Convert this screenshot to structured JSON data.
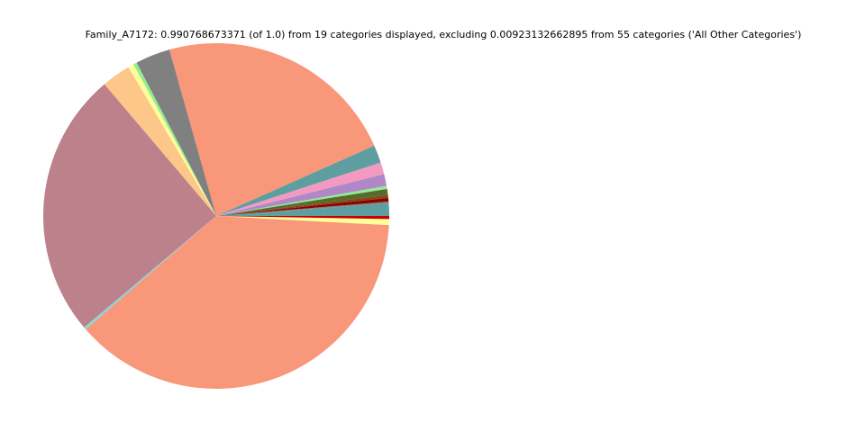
{
  "chart_data": {
    "type": "pie",
    "title": "Family_A7172: 0.990768673371 (of 1.0) from 19 categories displayed, excluding 0.00923132662895 from 55 categories ('All Other Categories')",
    "values": [
      1.17,
      0.17,
      0.33,
      0.28,
      0.56,
      0.28,
      1.11,
      1.11,
      1.67,
      22.69,
      3.25,
      0.33,
      0.53,
      2.72,
      24.97,
      0.22,
      37.78,
      0.56,
      0.28
    ],
    "colors": [
      "#5f9ea0",
      "#808080",
      "#8b0000",
      "#8b4513",
      "#556b2f",
      "#90ee90",
      "#b088c8",
      "#f49ac1",
      "#5f9ea0",
      "#f8977a",
      "#808080",
      "#90ee90",
      "#ffff99",
      "#fdc78a",
      "#bc818b",
      "#7fdbe0",
      "#f8977a",
      "#ffff99",
      "#cc0000"
    ],
    "startangle": 0,
    "counterclock": true
  }
}
